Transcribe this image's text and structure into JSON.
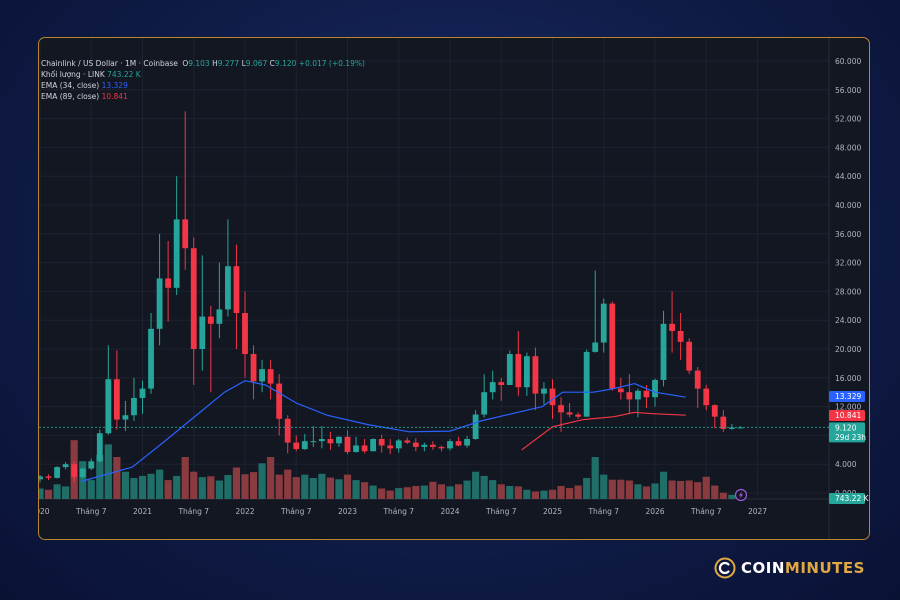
{
  "legend": {
    "symbol": "Chainlink / US Dollar · 1M · Coinbase",
    "o_label": "O",
    "o": "9.103",
    "h_label": "H",
    "h": "9.277",
    "l_label": "L",
    "l": "9.067",
    "c_label": "C",
    "c": "9.120",
    "change": "+0.017 (+0.19%)",
    "volume_label": "Khối lượng · LINK",
    "volume_value": "743.22 K",
    "ema34_label": "EMA (34, close)",
    "ema34_value": "13.329",
    "ema89_label": "EMA (89, close)",
    "ema89_value": "10.841"
  },
  "price_badges": {
    "ema34": "13.329",
    "ema89": "10.841",
    "last": "9.120",
    "countdown": "29d 23h",
    "volume": "743.22 K",
    "tick_12": "12.000"
  },
  "brand": {
    "name_part1": "COIN",
    "name_part2": "MINUTES"
  },
  "colors": {
    "up": "#26a69a",
    "down": "#f23645",
    "up_volume": "#1f6e68",
    "down_volume": "#8a3b3f",
    "ema34": "#2962ff",
    "ema89": "#f23645",
    "background": "#131722",
    "border": "#b8862c",
    "brand_accent": "#e0a840"
  },
  "chart_data": {
    "type": "candlestick",
    "title": "Chainlink / US Dollar · 1M · Coinbase",
    "interval": "1M",
    "ylim": [
      0,
      60
    ],
    "y_ticks": [
      "60.000",
      "56.000",
      "52.000",
      "48.000",
      "44.000",
      "40.000",
      "36.000",
      "32.000",
      "28.000",
      "24.000",
      "20.000",
      "16.000",
      "12.000",
      "8.000",
      "4.000",
      "0.000"
    ],
    "x_ticks": [
      {
        "label": "Tháng 7",
        "year": 2019.5
      },
      {
        "label": "2020",
        "year": 2020
      },
      {
        "label": "Tháng 7",
        "year": 2020.5
      },
      {
        "label": "2021",
        "year": 2021
      },
      {
        "label": "Tháng 7",
        "year": 2021.5
      },
      {
        "label": "2022",
        "year": 2022
      },
      {
        "label": "Tháng 7",
        "year": 2022.5
      },
      {
        "label": "2023",
        "year": 2023
      },
      {
        "label": "Tháng 7",
        "year": 2023.5
      },
      {
        "label": "2024",
        "year": 2024
      },
      {
        "label": "Tháng 7",
        "year": 2024.5
      },
      {
        "label": "2025",
        "year": 2025
      },
      {
        "label": "Tháng 7",
        "year": 2025.5
      },
      {
        "label": "2026",
        "year": 2026
      },
      {
        "label": "Tháng 7",
        "year": 2026.5
      },
      {
        "label": "2027",
        "year": 2027
      }
    ],
    "grid": true,
    "first_month": "2019-05",
    "ohlc": [
      [
        2.3,
        3.2,
        1.6,
        1.9
      ],
      [
        1.9,
        2.4,
        1.6,
        2.2
      ],
      [
        2.2,
        2.6,
        1.6,
        1.8
      ],
      [
        1.8,
        2.3,
        1.5,
        2.0
      ],
      [
        2.0,
        2.2,
        1.6,
        1.7
      ],
      [
        1.7,
        2.0,
        1.8,
        2.5
      ],
      [
        2.5,
        2.4,
        1.6,
        1.8
      ],
      [
        1.8,
        2.2,
        1.5,
        1.9
      ],
      [
        1.9,
        2.5,
        1.5,
        2.3
      ],
      [
        2.3,
        2.6,
        1.8,
        2.1
      ],
      [
        2.1,
        3.7,
        2.0,
        3.6
      ],
      [
        3.6,
        4.3,
        3.3,
        4.0
      ],
      [
        4.0,
        4.4,
        1.5,
        2.2
      ],
      [
        2.2,
        3.5,
        2.0,
        3.4
      ],
      [
        3.4,
        4.8,
        3.2,
        4.4
      ],
      [
        4.4,
        8.8,
        4.2,
        8.3
      ],
      [
        8.3,
        20.5,
        8.1,
        15.8
      ],
      [
        15.8,
        19.8,
        8.8,
        10.2
      ],
      [
        10.2,
        12.8,
        8.6,
        10.8
      ],
      [
        10.8,
        16.0,
        10.0,
        13.2
      ],
      [
        13.2,
        15.6,
        11.0,
        14.5
      ],
      [
        14.5,
        25.0,
        13.8,
        22.8
      ],
      [
        22.8,
        36.0,
        20.5,
        29.8
      ],
      [
        29.8,
        35.0,
        23.8,
        28.5
      ],
      [
        28.5,
        44.0,
        27.5,
        38.0
      ],
      [
        38.0,
        53.0,
        31.0,
        34.0
      ],
      [
        34.0,
        35.5,
        15.0,
        20.0
      ],
      [
        20.0,
        33.0,
        17.0,
        24.5
      ],
      [
        24.5,
        26.0,
        14.0,
        23.5
      ],
      [
        23.5,
        32.0,
        21.5,
        25.5
      ],
      [
        25.5,
        38.0,
        24.5,
        31.5
      ],
      [
        31.5,
        34.5,
        20.0,
        25.0
      ],
      [
        25.0,
        28.0,
        16.0,
        19.3
      ],
      [
        19.3,
        20.5,
        13.0,
        15.5
      ],
      [
        15.5,
        18.5,
        14.0,
        17.2
      ],
      [
        17.2,
        18.5,
        13.0,
        15.2
      ],
      [
        15.2,
        16.5,
        8.0,
        10.3
      ],
      [
        10.3,
        10.8,
        5.5,
        7.0
      ],
      [
        7.0,
        8.0,
        5.8,
        6.1
      ],
      [
        6.1,
        8.2,
        6.0,
        7.2
      ],
      [
        7.2,
        9.3,
        6.4,
        7.2
      ],
      [
        7.2,
        9.3,
        6.2,
        7.5
      ],
      [
        7.5,
        8.5,
        6.0,
        6.9
      ],
      [
        6.9,
        7.9,
        6.4,
        7.8
      ],
      [
        7.8,
        8.7,
        5.4,
        5.7
      ],
      [
        5.7,
        7.8,
        5.6,
        6.6
      ],
      [
        6.6,
        7.5,
        5.5,
        5.8
      ],
      [
        5.8,
        7.6,
        5.8,
        7.5
      ],
      [
        7.5,
        8.1,
        5.6,
        6.6
      ],
      [
        6.6,
        7.5,
        5.4,
        6.2
      ],
      [
        6.2,
        7.5,
        5.6,
        7.3
      ],
      [
        7.3,
        7.7,
        6.8,
        7.0
      ],
      [
        7.0,
        7.6,
        5.8,
        6.4
      ],
      [
        6.4,
        7.0,
        5.8,
        6.7
      ],
      [
        6.7,
        7.2,
        6.0,
        6.4
      ],
      [
        6.4,
        6.6,
        5.8,
        6.2
      ],
      [
        6.2,
        7.5,
        5.9,
        7.2
      ],
      [
        7.2,
        7.8,
        6.5,
        6.6
      ],
      [
        6.6,
        7.9,
        6.3,
        7.5
      ],
      [
        7.5,
        11.5,
        7.4,
        10.9
      ],
      [
        10.9,
        16.5,
        10.5,
        14.0
      ],
      [
        14.0,
        17.0,
        13.0,
        15.4
      ],
      [
        15.4,
        16.0,
        12.8,
        15.0
      ],
      [
        15.0,
        19.8,
        15.0,
        19.3
      ],
      [
        19.3,
        22.5,
        13.5,
        14.7
      ],
      [
        14.7,
        19.5,
        13.5,
        19.0
      ],
      [
        19.0,
        20.2,
        11.5,
        13.8
      ],
      [
        13.8,
        15.4,
        12.3,
        14.5
      ],
      [
        14.5,
        15.8,
        10.3,
        12.2
      ],
      [
        12.2,
        13.3,
        8.5,
        11.2
      ],
      [
        11.2,
        12.5,
        10.5,
        10.9
      ],
      [
        10.9,
        11.2,
        10.3,
        10.6
      ],
      [
        10.6,
        19.9,
        10.6,
        19.6
      ],
      [
        19.6,
        30.9,
        19.5,
        20.9
      ],
      [
        20.9,
        27.0,
        19.5,
        26.3
      ],
      [
        26.3,
        26.6,
        14.2,
        14.5
      ],
      [
        14.5,
        16.0,
        13.0,
        14.0
      ],
      [
        14.0,
        16.5,
        11.0,
        13.0
      ],
      [
        13.0,
        14.5,
        10.5,
        14.2
      ],
      [
        14.2,
        15.0,
        11.8,
        13.3
      ],
      [
        13.3,
        15.9,
        12.0,
        15.7
      ],
      [
        15.7,
        25.3,
        14.8,
        23.5
      ],
      [
        23.5,
        28.0,
        19.5,
        22.5
      ],
      [
        22.5,
        25.0,
        18.5,
        21.0
      ],
      [
        21.0,
        21.5,
        16.5,
        17.0
      ],
      [
        17.0,
        17.5,
        11.8,
        14.5
      ],
      [
        14.5,
        15.0,
        11.5,
        12.2
      ],
      [
        12.2,
        12.3,
        9.0,
        10.6
      ],
      [
        10.6,
        11.5,
        8.5,
        8.9
      ],
      [
        8.9,
        9.6,
        8.8,
        9.1
      ],
      [
        9.1,
        9.3,
        9.0,
        9.1
      ]
    ],
    "volume": [
      3.2,
      2.2,
      1.4,
      1.7,
      1.5,
      2.2,
      1.9,
      2.5,
      2.5,
      2.2,
      3.5,
      3.0,
      14.0,
      9.0,
      4.5,
      10.5,
      13.0,
      10.0,
      6.5,
      5.0,
      5.5,
      6.0,
      7.0,
      4.5,
      5.5,
      10.0,
      6.5,
      5.2,
      5.4,
      4.4,
      5.7,
      7.5,
      5.9,
      6.4,
      8.5,
      10.0,
      5.8,
      7.0,
      5.2,
      5.8,
      5.0,
      6.0,
      5.1,
      4.7,
      5.8,
      4.5,
      4.0,
      3.2,
      2.5,
      2.0,
      2.6,
      2.8,
      3.1,
      3.2,
      4.1,
      3.5,
      3.0,
      3.5,
      4.4,
      6.5,
      5.5,
      4.5,
      3.5,
      3.1,
      3.0,
      2.2,
      1.8,
      2.0,
      2.2,
      3.1,
      2.6,
      3.2,
      5.0,
      10.0,
      5.8,
      4.6,
      4.6,
      4.4,
      3.5,
      3.0,
      3.7,
      6.5,
      4.4,
      4.3,
      4.4,
      4.0,
      5.3,
      3.2,
      1.5,
      1.0,
      0.6
    ],
    "ema34_points": [
      [
        2020.4,
        1.6
      ],
      [
        2020.9,
        3.6
      ],
      [
        2021.2,
        7.0
      ],
      [
        2021.5,
        10.5
      ],
      [
        2021.8,
        14.0
      ],
      [
        2022.0,
        15.6
      ],
      [
        2022.2,
        15.0
      ],
      [
        2022.5,
        12.5
      ],
      [
        2022.8,
        10.8
      ],
      [
        2023.2,
        9.5
      ],
      [
        2023.6,
        8.5
      ],
      [
        2024.0,
        8.6
      ],
      [
        2024.3,
        10.0
      ],
      [
        2024.6,
        11.0
      ],
      [
        2024.9,
        12.0
      ],
      [
        2025.1,
        14.0
      ],
      [
        2025.4,
        14.0
      ],
      [
        2025.6,
        14.5
      ],
      [
        2025.8,
        15.2
      ],
      [
        2026.0,
        14.0
      ],
      [
        2026.3,
        13.3
      ]
    ],
    "ema89_points": [
      [
        2024.7,
        6.0
      ],
      [
        2025.0,
        9.2
      ],
      [
        2025.3,
        10.2
      ],
      [
        2025.6,
        10.6
      ],
      [
        2025.8,
        11.2
      ],
      [
        2026.0,
        11.0
      ],
      [
        2026.3,
        10.8
      ]
    ],
    "last_price": 9.12,
    "ema34_last": 13.329,
    "ema89_last": 10.841
  }
}
